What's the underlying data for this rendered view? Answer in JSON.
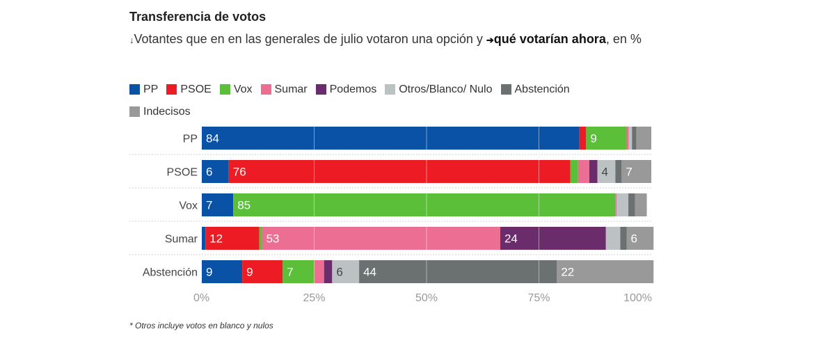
{
  "title": "Transferencia de votos",
  "subtitle": {
    "arrow_down": "↓",
    "part1": "Votantes que en en las generales de julio votaron una opción y ",
    "arrow_right": "➔",
    "bold": "qué votarían ahora",
    "part2": ", en %"
  },
  "footnote": "* Otros incluye votos en blanco y nulos",
  "chart_data": {
    "type": "bar",
    "orientation": "horizontal",
    "stacked": true,
    "categories": [
      "PP",
      "PSOE",
      "Vox",
      "Sumar",
      "Abstención"
    ],
    "series": [
      {
        "name": "PP",
        "color": "#0a52a5",
        "values": [
          84,
          6,
          7,
          0.8,
          9
        ]
      },
      {
        "name": "PSOE",
        "color": "#ed1c24",
        "values": [
          1.5,
          76,
          0,
          12,
          9
        ]
      },
      {
        "name": "Vox",
        "color": "#5bbf3a",
        "values": [
          9,
          1.7,
          85,
          0.6,
          7
        ]
      },
      {
        "name": "Sumar",
        "color": "#ec6f93",
        "values": [
          0.5,
          2.5,
          0.3,
          53,
          2.2
        ]
      },
      {
        "name": "Podemos",
        "color": "#6a2c6a",
        "values": [
          0,
          1.8,
          0,
          23.5,
          1.8
        ]
      },
      {
        "name": "Otros/Blanco/ Nulo",
        "color": "#bcc1c4",
        "values": [
          0.7,
          4,
          2.6,
          3.2,
          6
        ]
      },
      {
        "name": "Abstención",
        "color": "#6b7170",
        "values": [
          1,
          1.4,
          1.5,
          1.4,
          44
        ]
      },
      {
        "name": "Indecisos",
        "color": "#999999",
        "values": [
          3.3,
          6.6,
          2.6,
          6,
          21.5
        ]
      }
    ],
    "xlim": [
      0,
      100
    ],
    "xticks": [
      "0%",
      "25%",
      "50%",
      "75%",
      "100%"
    ],
    "legend": "top",
    "grid": true
  }
}
